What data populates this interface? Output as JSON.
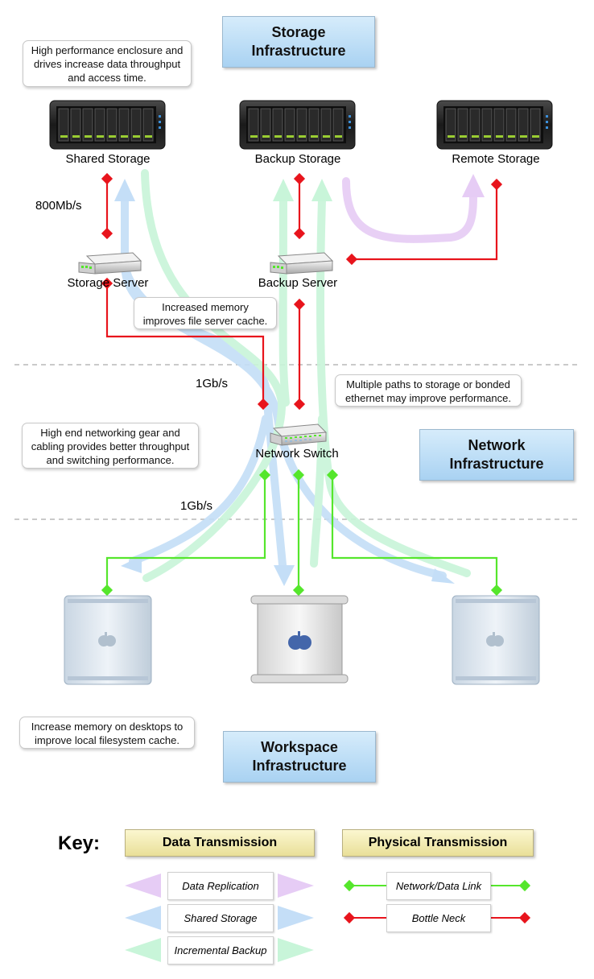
{
  "titles": {
    "storage": "Storage\nInfrastructure",
    "network": "Network\nInfrastructure",
    "workspace": "Workspace\nInfrastructure"
  },
  "notes": {
    "enclosure": "High performance enclosure and\ndrives increase data throughput\nand access time.",
    "memory": "Increased memory\nimproves file server cache.",
    "paths": "Multiple paths to storage or bonded\nethernet may improve performance.",
    "networking": "High end networking gear and\ncabling provides better throughput\nand switching performance.",
    "desktops": "Increase memory on desktops to\nimprove local filesystem cache."
  },
  "devices": {
    "shared_storage": "Shared Storage",
    "backup_storage": "Backup Storage",
    "remote_storage": "Remote Storage",
    "storage_server": "Storage Server",
    "backup_server": "Backup Server",
    "network_switch": "Network Switch"
  },
  "rates": {
    "storage_link": "800Mb/s",
    "switch_uplink": "1Gb/s",
    "desktop_link": "1Gb/s"
  },
  "key": {
    "title": "Key:",
    "data_transmission": "Data Transmission",
    "physical_transmission": "Physical Transmission",
    "data_replication": "Data Replication",
    "shared_storage": "Shared Storage",
    "incremental_backup": "Incremental Backup",
    "network_link": "Network/Data Link",
    "bottle_neck": "Bottle Neck"
  },
  "colors": {
    "replication": "#e6ccf5",
    "shared": "#c4def7",
    "backup": "#c8f5d9",
    "network": "#55e62c",
    "bottleneck": "#e8141c"
  }
}
